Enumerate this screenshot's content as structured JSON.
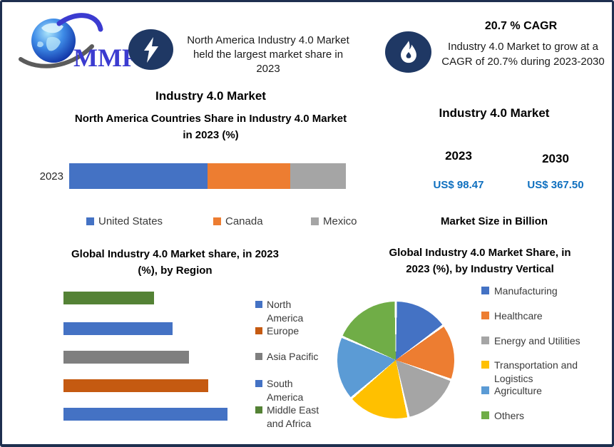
{
  "logo": {
    "text": "MMR"
  },
  "callouts": {
    "left": {
      "icon": "lightning-bolt",
      "lines": [
        "North America Industry 4.0 Market",
        "held the largest market share in",
        "2023"
      ]
    },
    "right": {
      "icon": "flame",
      "title": "20.7 % CAGR",
      "lines": [
        "Industry 4.0 Market to grow at a",
        "CAGR of 20.7% during 2023-2030"
      ]
    }
  },
  "left_panel": {
    "title": "Industry 4.0 Market",
    "subtitle_lines": [
      "North America Countries Share in Industry 4.0  Market",
      "in 2023 (%)"
    ]
  },
  "market_size_panel": {
    "title": "Industry 4.0 Market",
    "col_2023": {
      "year": "2023",
      "value": "US$ 98.47"
    },
    "col_2030": {
      "year": "2030",
      "value": "US$ 367.50"
    },
    "caption": "Market Size in Billion",
    "value_color": "#0e6fbf"
  },
  "chart_data": [
    {
      "type": "bar",
      "subtype": "horizontal-stacked",
      "title": "North America Countries Share in Industry 4.0 Market in 2023 (%)",
      "categories": [
        "2023"
      ],
      "series": [
        {
          "name": "United States",
          "values": [
            50
          ]
        },
        {
          "name": "Canada",
          "values": [
            30
          ]
        },
        {
          "name": "Mexico",
          "values": [
            20
          ]
        }
      ],
      "colors": [
        "#4472c4",
        "#ed7d31",
        "#a5a5a5"
      ],
      "values_note": "percent shares estimated from segment lengths; no numeric labels shown",
      "legend_position": "bottom",
      "grid": false
    },
    {
      "type": "bar",
      "subtype": "horizontal",
      "title": "Global Industry 4.0 Market share, in 2023 (%), by Region",
      "categories": [
        "Middle East and Africa",
        "South America",
        "Asia Pacific",
        "Europe",
        "North America"
      ],
      "values": [
        16.5,
        20,
        23,
        26.5,
        30
      ],
      "colors": [
        "#548235",
        "#4472c4",
        "#7f7f7f",
        "#c55a11",
        "#4472c4"
      ],
      "legend": [
        {
          "label": "North America",
          "color": "#4472c4"
        },
        {
          "label": "Europe",
          "color": "#c55a11"
        },
        {
          "label": "Asia Pacific",
          "color": "#7f7f7f"
        },
        {
          "label": "South America",
          "color": "#4472c4"
        },
        {
          "label": "Middle East and Africa",
          "color": "#548235"
        }
      ],
      "values_note": "relative shares estimated from bar lengths; no axis labels shown",
      "legend_position": "right",
      "grid": false
    },
    {
      "type": "pie",
      "title": "Global Industry 4.0 Market Share, in 2023 (%), by Industry Vertical",
      "labels": [
        "Manufacturing",
        "Healthcare",
        "Energy and Utilities",
        "Transportation and Logistics",
        "Agriculture",
        "Others"
      ],
      "values": [
        15,
        15.5,
        16,
        17.2,
        17.8,
        18.5
      ],
      "colors": [
        "#4472c4",
        "#ed7d31",
        "#a5a5a5",
        "#ffc000",
        "#5b9bd5",
        "#70ad47"
      ],
      "values_note": "percent shares estimated from slice angles; no data labels shown",
      "legend_position": "right",
      "grid": false
    }
  ],
  "region_chart": {
    "title_lines": [
      "Global Industry 4.0  Market share, in 2023",
      "(%), by Region"
    ]
  },
  "vertical_chart": {
    "title_lines": [
      "Global Industry 4.0 Market Share, in",
      "2023 (%), by  Industry Vertical"
    ]
  }
}
